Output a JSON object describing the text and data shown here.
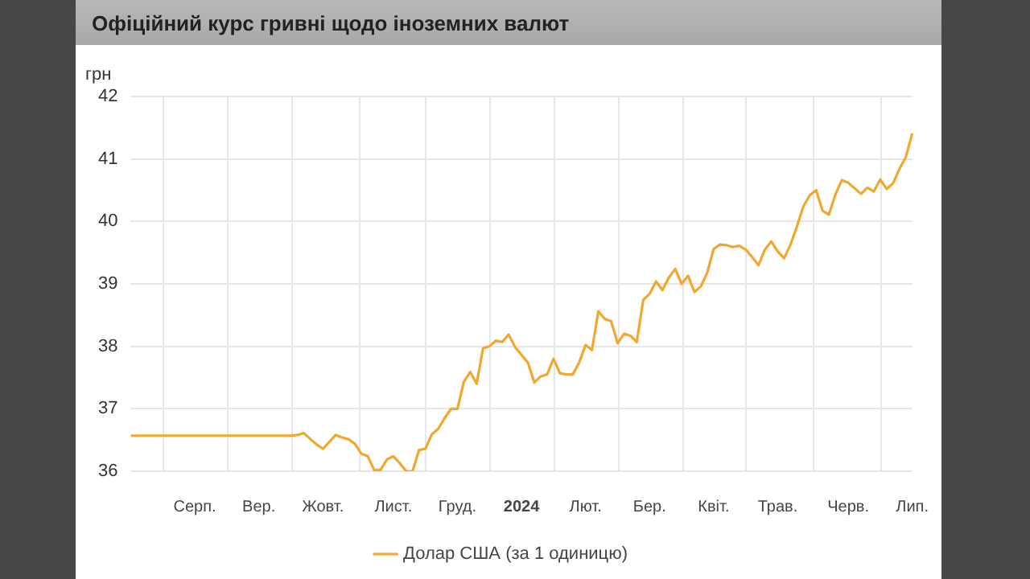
{
  "chart_data": {
    "type": "line",
    "title": "Офіційний курс гривні щодо іноземних валют",
    "ylabel": "грн",
    "categories": [
      null,
      null,
      null,
      null,
      null,
      null,
      null,
      null,
      null,
      null,
      "Серп.",
      null,
      null,
      null,
      null,
      null,
      null,
      null,
      null,
      null,
      "Вер.",
      null,
      null,
      null,
      null,
      null,
      null,
      null,
      null,
      null,
      "Жовт.",
      null,
      null,
      null,
      null,
      null,
      null,
      null,
      null,
      null,
      null,
      "Лист.",
      null,
      null,
      null,
      null,
      null,
      null,
      null,
      null,
      null,
      "Груд.",
      null,
      null,
      null,
      null,
      null,
      null,
      null,
      null,
      null,
      "2024",
      null,
      null,
      null,
      null,
      null,
      null,
      null,
      null,
      null,
      "Лют.",
      null,
      null,
      null,
      null,
      null,
      null,
      null,
      null,
      null,
      "Бер.",
      null,
      null,
      null,
      null,
      null,
      null,
      null,
      null,
      null,
      "Квіт.",
      null,
      null,
      null,
      null,
      null,
      null,
      null,
      null,
      null,
      "Трав.",
      null,
      null,
      null,
      null,
      null,
      null,
      null,
      null,
      null,
      null,
      "Черв.",
      null,
      null,
      null,
      null,
      null,
      null,
      null,
      null,
      null,
      "Лип."
    ],
    "series": [
      {
        "name": "Долар США (за 1 одиницю)",
        "color": "#f0a830",
        "values": [
          36.57,
          36.57,
          36.57,
          36.57,
          36.57,
          36.57,
          36.57,
          36.57,
          36.57,
          36.57,
          36.57,
          36.57,
          36.57,
          36.57,
          36.57,
          36.57,
          36.57,
          36.57,
          36.57,
          36.57,
          36.57,
          36.57,
          36.57,
          36.57,
          36.57,
          36.57,
          36.58,
          36.61,
          36.52,
          36.43,
          36.36,
          36.47,
          36.58,
          36.54,
          36.51,
          36.44,
          36.28,
          36.24,
          36.02,
          36.02,
          36.19,
          36.24,
          36.13,
          36.0,
          36.0,
          36.34,
          36.36,
          36.59,
          36.68,
          36.85,
          37.0,
          37.0,
          37.43,
          37.59,
          37.4,
          37.97,
          38.0,
          38.09,
          38.07,
          38.19,
          37.99,
          37.86,
          37.74,
          37.42,
          37.52,
          37.55,
          37.8,
          37.57,
          37.55,
          37.55,
          37.74,
          38.02,
          37.94,
          38.56,
          38.44,
          38.4,
          38.05,
          38.2,
          38.17,
          38.07,
          38.74,
          38.84,
          39.04,
          38.9,
          39.1,
          39.24,
          39.0,
          39.13,
          38.87,
          38.96,
          39.18,
          39.56,
          39.63,
          39.62,
          39.59,
          39.61,
          39.55,
          39.43,
          39.3,
          39.55,
          39.68,
          39.52,
          39.41,
          39.63,
          39.92,
          40.24,
          40.42,
          40.5,
          40.17,
          40.11,
          40.43,
          40.66,
          40.62,
          40.53,
          40.44,
          40.54,
          40.48,
          40.67,
          40.52,
          40.61,
          40.84,
          41.03,
          41.41
        ]
      }
    ],
    "ylim": [
      36,
      42
    ],
    "yticks": [
      36,
      37,
      38,
      39,
      40,
      41,
      42
    ],
    "grid": true,
    "legend": "bottom",
    "marker": "none",
    "line_style": "solid"
  }
}
